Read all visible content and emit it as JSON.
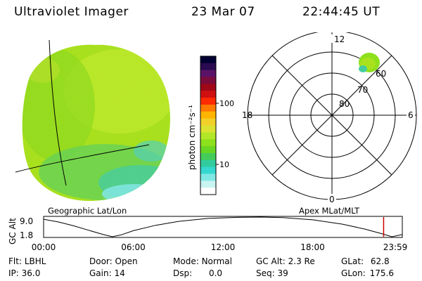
{
  "header": {
    "instrument": "Ultraviolet Imager",
    "date": "23 Mar 07",
    "time": "22:44:45 UT"
  },
  "colorbar": {
    "unit_label": "photon cm⁻²s⁻¹",
    "ticks": [
      {
        "label": "100",
        "value": 100
      },
      {
        "label": "10",
        "value": 10
      }
    ],
    "colors": [
      "#000033",
      "#2a0a50",
      "#5a1266",
      "#7a0c3c",
      "#a00818",
      "#d01010",
      "#ff2a00",
      "#ff7a00",
      "#ffb400",
      "#f2d02a",
      "#dce232",
      "#b4e628",
      "#8ee01c",
      "#6ad624",
      "#44cc5a",
      "#30cc9e",
      "#34d8d0",
      "#80e8e4",
      "#c8f4f2",
      "#ffffff"
    ]
  },
  "polar_grid": {
    "mlt_labels": [
      {
        "label": "12",
        "angle_deg": 0
      },
      {
        "label": "6",
        "angle_deg": 90
      },
      {
        "label": "0",
        "angle_deg": 180
      },
      {
        "label": "18",
        "angle_deg": 270
      }
    ],
    "lat_labels": [
      {
        "label": "80",
        "ring": 1
      },
      {
        "label": "70",
        "ring": 2
      },
      {
        "label": "60",
        "ring": 3
      }
    ]
  },
  "coord_labels": {
    "left": "Geographic Lat/Lon",
    "right": "Apex MLat/MLT"
  },
  "altitude_plot": {
    "ylabel": "GC Alt",
    "yticks": [
      "9.0",
      "1.8"
    ],
    "xticks": [
      "00:00",
      "06:00",
      "12:00",
      "18:00",
      "23:59"
    ],
    "x_range_hours": [
      0,
      24
    ],
    "y_range": [
      1.8,
      9.0
    ],
    "marker_hour": 22.75,
    "marker_color": "#cc0000",
    "profile": [
      {
        "h": 0.0,
        "alt": 8.2
      },
      {
        "h": 1.0,
        "alt": 7.2
      },
      {
        "h": 2.0,
        "alt": 5.8
      },
      {
        "h": 3.0,
        "alt": 4.2
      },
      {
        "h": 4.0,
        "alt": 2.6
      },
      {
        "h": 4.6,
        "alt": 1.8
      },
      {
        "h": 5.2,
        "alt": 2.5
      },
      {
        "h": 6.0,
        "alt": 4.0
      },
      {
        "h": 7.5,
        "alt": 6.0
      },
      {
        "h": 9.0,
        "alt": 7.4
      },
      {
        "h": 11.0,
        "alt": 8.5
      },
      {
        "h": 13.0,
        "alt": 8.9
      },
      {
        "h": 14.5,
        "alt": 9.0
      },
      {
        "h": 16.0,
        "alt": 8.8
      },
      {
        "h": 18.0,
        "alt": 8.0
      },
      {
        "h": 20.0,
        "alt": 6.4
      },
      {
        "h": 21.5,
        "alt": 4.6
      },
      {
        "h": 22.7,
        "alt": 2.8
      },
      {
        "h": 23.3,
        "alt": 1.8
      },
      {
        "h": 24.0,
        "alt": 2.6
      }
    ]
  },
  "info": {
    "filter_label": "Flt:",
    "filter_value": "LBHL",
    "door_label": "Door:",
    "door_value": "Open",
    "mode_label": "Mode:",
    "mode_value": "Normal",
    "gcalt_label": "GC Alt:",
    "gcalt_value": "2.3 Re",
    "glat_label": "GLat:",
    "glat_value": "62.8",
    "ip_label": "IP:",
    "ip_value": "36.0",
    "gain_label": "Gain:",
    "gain_value": "14",
    "dsp_label": "Dsp:",
    "dsp_value": "0.0",
    "seq_label": "Seq:",
    "seq_value": "39",
    "glon_label": "GLon:",
    "glon_value": "175.6"
  }
}
